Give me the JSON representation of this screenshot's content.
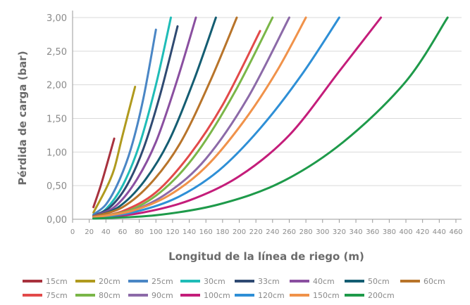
{
  "chart_data": {
    "type": "line",
    "title": "",
    "xlabel": "Longitud de la línea de riego (m)",
    "ylabel": "Pérdida de carga (bar)",
    "xlim": [
      0,
      460
    ],
    "ylim": [
      0,
      3
    ],
    "x_ticks": [
      "0",
      "20",
      "40",
      "60",
      "80",
      "100",
      "120",
      "140",
      "160",
      "180",
      "200",
      "220",
      "240",
      "260",
      "280",
      "300",
      "320",
      "340",
      "360",
      "380",
      "400",
      "420",
      "440",
      "460"
    ],
    "y_ticks": [
      "0,00",
      "0,50",
      "1,00",
      "1,50",
      "2,00",
      "2,50",
      "3,00"
    ],
    "grid": "horizontal",
    "legend_position": "bottom",
    "series": [
      {
        "name": "15cm",
        "color": "#a8323e",
        "x": [
          25,
          35,
          50
        ],
        "y": [
          0.18,
          0.55,
          1.2
        ]
      },
      {
        "name": "20cm",
        "color": "#b09a1e",
        "x": [
          25,
          40,
          50,
          60,
          75
        ],
        "y": [
          0.1,
          0.45,
          0.75,
          1.25,
          1.97
        ]
      },
      {
        "name": "25cm",
        "color": "#4a86c5",
        "x": [
          25,
          40,
          55,
          70,
          85,
          100
        ],
        "y": [
          0.07,
          0.22,
          0.55,
          1.05,
          1.8,
          2.82
        ]
      },
      {
        "name": "30cm",
        "color": "#1fbcb7",
        "x": [
          25,
          40,
          60,
          80,
          100,
          118
        ],
        "y": [
          0.06,
          0.15,
          0.5,
          1.1,
          2.0,
          3.0
        ]
      },
      {
        "name": "33cm",
        "color": "#2f4a72",
        "x": [
          25,
          45,
          65,
          85,
          105,
          126
        ],
        "y": [
          0.05,
          0.18,
          0.5,
          1.05,
          1.85,
          2.87
        ]
      },
      {
        "name": "40cm",
        "color": "#8a4fa0",
        "x": [
          25,
          50,
          75,
          100,
          125,
          148
        ],
        "y": [
          0.05,
          0.18,
          0.55,
          1.15,
          2.05,
          3.0
        ]
      },
      {
        "name": "50cm",
        "color": "#145d72",
        "x": [
          25,
          55,
          85,
          115,
          145,
          172
        ],
        "y": [
          0.04,
          0.18,
          0.55,
          1.15,
          2.05,
          3.0
        ]
      },
      {
        "name": "60cm",
        "color": "#b8742a",
        "x": [
          25,
          60,
          95,
          130,
          165,
          197
        ],
        "y": [
          0.04,
          0.18,
          0.55,
          1.15,
          2.05,
          3.0
        ]
      },
      {
        "name": "75cm",
        "color": "#e24a4a",
        "x": [
          25,
          60,
          100,
          140,
          180,
          225
        ],
        "y": [
          0.03,
          0.12,
          0.4,
          0.95,
          1.7,
          2.8
        ]
      },
      {
        "name": "80cm",
        "color": "#7ab648",
        "x": [
          25,
          70,
          110,
          150,
          195,
          240
        ],
        "y": [
          0.03,
          0.14,
          0.45,
          1.0,
          1.9,
          3.0
        ]
      },
      {
        "name": "90cm",
        "color": "#8c6aa8",
        "x": [
          25,
          70,
          115,
          160,
          210,
          260
        ],
        "y": [
          0.03,
          0.12,
          0.4,
          0.9,
          1.8,
          3.0
        ]
      },
      {
        "name": "100cm",
        "color": "#c41d7a",
        "x": [
          25,
          80,
          140,
          200,
          260,
          320,
          370
        ],
        "y": [
          0.02,
          0.09,
          0.28,
          0.64,
          1.25,
          2.2,
          3.0
        ]
      },
      {
        "name": "120cm",
        "color": "#2e8fd6",
        "x": [
          25,
          75,
          125,
          175,
          225,
          275,
          320
        ],
        "y": [
          0.02,
          0.11,
          0.32,
          0.72,
          1.35,
          2.15,
          3.0
        ]
      },
      {
        "name": "150cm",
        "color": "#f0924a",
        "x": [
          25,
          70,
          115,
          160,
          205,
          245,
          280
        ],
        "y": [
          0.03,
          0.12,
          0.35,
          0.78,
          1.45,
          2.2,
          3.0
        ]
      },
      {
        "name": "200cm",
        "color": "#1e9a4a",
        "x": [
          25,
          100,
          175,
          250,
          325,
          400,
          450
        ],
        "y": [
          0.01,
          0.06,
          0.22,
          0.55,
          1.15,
          2.05,
          3.0
        ]
      }
    ]
  }
}
